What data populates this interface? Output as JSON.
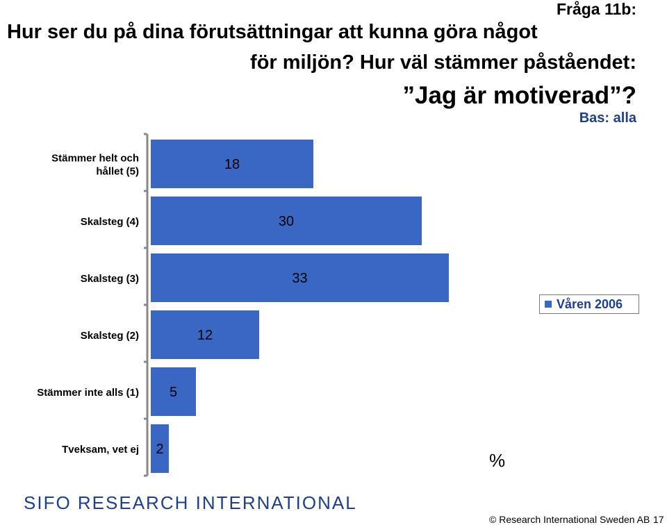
{
  "header": {
    "question_number": "Fråga 11b:",
    "title_line1": "Hur ser du på dina förutsättningar att kunna göra något",
    "title_line2": "för miljön? Hur väl stämmer påståendet:",
    "title_line3": "”Jag är motiverad”?",
    "base": "Bas: alla"
  },
  "chart_data": {
    "type": "bar",
    "orientation": "horizontal",
    "categories": [
      [
        "Stämmer helt och",
        "hållet (5)"
      ],
      [
        "Skalsteg (4)"
      ],
      [
        "Skalsteg (3)"
      ],
      [
        "Skalsteg (2)"
      ],
      [
        "Stämmer inte alls (1)"
      ],
      [
        "Tveksam, vet ej"
      ]
    ],
    "series": [
      {
        "name": "Våren 2006",
        "values": [
          18,
          30,
          33,
          12,
          5,
          2
        ]
      }
    ],
    "unit": "%",
    "bar_color": "#3a67c4",
    "grid": false,
    "legend_position": "right"
  },
  "footer": {
    "logo": "SIFO RESEARCH INTERNATIONAL",
    "copyright": "© Research International Sweden AB",
    "page_number": "17"
  }
}
